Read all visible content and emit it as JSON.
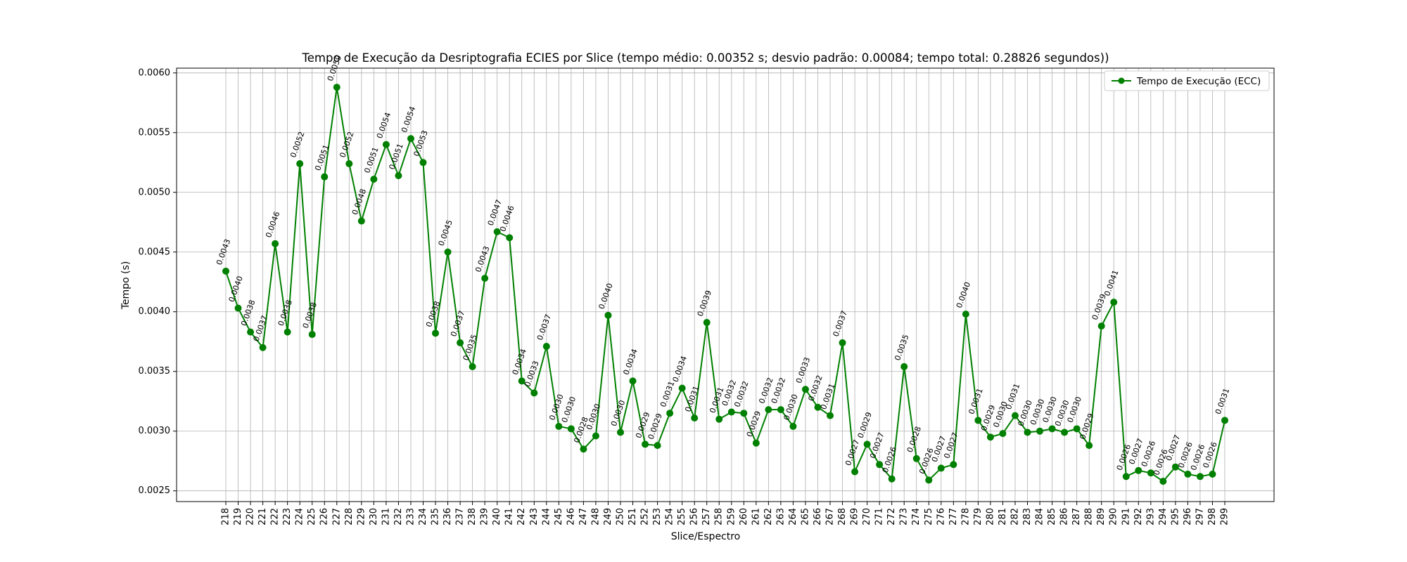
{
  "chart_data": {
    "type": "line",
    "title": "Tempo de Execução da Desriptografia ECIES por Slice (tempo médio: 0.00352 s; desvio padrão: 0.00084; tempo total: 0.28826 segundos))",
    "xlabel": "Slice/Espectro",
    "ylabel": "Tempo (s)",
    "ylim": [
      0.00241,
      0.00604
    ],
    "yticks": [
      "0.0025",
      "0.0030",
      "0.0035",
      "0.0040",
      "0.0045",
      "0.0050",
      "0.0055",
      "0.0060"
    ],
    "grid": true,
    "legend_position": "top-right",
    "categories": [
      "218",
      "219",
      "220",
      "221",
      "222",
      "223",
      "224",
      "225",
      "226",
      "227",
      "228",
      "229",
      "230",
      "231",
      "232",
      "233",
      "234",
      "235",
      "236",
      "237",
      "238",
      "239",
      "240",
      "241",
      "242",
      "243",
      "244",
      "245",
      "246",
      "247",
      "248",
      "249",
      "250",
      "251",
      "252",
      "253",
      "254",
      "255",
      "256",
      "257",
      "258",
      "259",
      "260",
      "261",
      "262",
      "263",
      "264",
      "265",
      "266",
      "267",
      "268",
      "269",
      "270",
      "271",
      "272",
      "273",
      "274",
      "275",
      "276",
      "277",
      "278",
      "279",
      "280",
      "281",
      "282",
      "283",
      "284",
      "285",
      "286",
      "287",
      "288",
      "289",
      "290",
      "291",
      "292",
      "293",
      "294",
      "295",
      "296",
      "297",
      "298",
      "299"
    ],
    "series": [
      {
        "name": "Tempo de Execução (ECC)",
        "color": "#008000",
        "values": [
          0.00434,
          0.00403,
          0.00383,
          0.0037,
          0.00457,
          0.00383,
          0.00524,
          0.00381,
          0.00513,
          0.00588,
          0.00524,
          0.00476,
          0.00511,
          0.0054,
          0.00514,
          0.00545,
          0.00525,
          0.00382,
          0.0045,
          0.00374,
          0.00354,
          0.00428,
          0.00467,
          0.00462,
          0.00342,
          0.00332,
          0.00371,
          0.00304,
          0.00302,
          0.00285,
          0.00296,
          0.00397,
          0.00299,
          0.00342,
          0.00289,
          0.00288,
          0.00315,
          0.00336,
          0.00311,
          0.00391,
          0.0031,
          0.00316,
          0.00315,
          0.0029,
          0.00318,
          0.00318,
          0.00304,
          0.00335,
          0.0032,
          0.00313,
          0.00374,
          0.00266,
          0.00289,
          0.00272,
          0.0026,
          0.00354,
          0.00277,
          0.00259,
          0.00269,
          0.00272,
          0.00398,
          0.00309,
          0.00295,
          0.00298,
          0.00313,
          0.00299,
          0.003,
          0.00302,
          0.00299,
          0.00302,
          0.00288,
          0.00388,
          0.00408,
          0.00262,
          0.00267,
          0.00265,
          0.00258,
          0.0027,
          0.00264,
          0.00262,
          0.00264,
          0.00309
        ],
        "labels": [
          "0.0043",
          "0.0040",
          "0.0038",
          "0.0037",
          "0.0046",
          "0.0038",
          "0.0052",
          "0.0038",
          "0.0051",
          "0.0059",
          "0.0052",
          "0.0048",
          "0.0051",
          "0.0054",
          "0.0051",
          "0.0054",
          "0.0053",
          "0.0038",
          "0.0045",
          "0.0037",
          "0.0035",
          "0.0043",
          "0.0047",
          "0.0046",
          "0.0034",
          "0.0033",
          "0.0037",
          "0.0030",
          "0.0030",
          "0.0028",
          "0.0030",
          "0.0040",
          "0.0030",
          "0.0034",
          "0.0029",
          "0.0029",
          "0.0031",
          "0.0034",
          "0.0031",
          "0.0039",
          "0.0031",
          "0.0032",
          "0.0032",
          "0.0029",
          "0.0032",
          "0.0032",
          "0.0030",
          "0.0033",
          "0.0032",
          "0.0031",
          "0.0037",
          "0.0027",
          "0.0029",
          "0.0027",
          "0.0026",
          "0.0035",
          "0.0028",
          "0.0026",
          "0.0027",
          "0.0027",
          "0.0040",
          "0.0031",
          "0.0029",
          "0.0030",
          "0.0031",
          "0.0030",
          "0.0030",
          "0.0030",
          "0.0030",
          "0.0030",
          "0.0029",
          "0.0039",
          "0.0041",
          "0.0026",
          "0.0027",
          "0.0026",
          "0.0026",
          "0.0027",
          "0.0026",
          "0.0026",
          "0.0026",
          "0.0031"
        ]
      }
    ]
  }
}
